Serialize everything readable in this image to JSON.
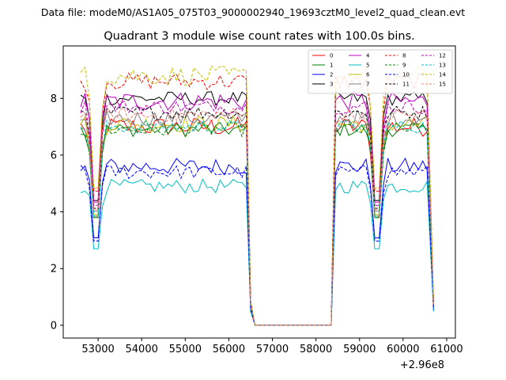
{
  "figure": {
    "suptitle": "Data file: modeM0/AS1A05_075T03_9000002940_19693cztM0_level2_quad_clean.evt"
  },
  "chart_data": {
    "type": "line",
    "title": "Quadrant 3 module wise count rates with 100.0s bins.",
    "xlabel": "",
    "ylabel": "",
    "x_offset_text": "+2.96e8",
    "xlim": [
      52200,
      61200
    ],
    "ylim": [
      -0.45,
      9.85
    ],
    "x_ticks": [
      53000,
      54000,
      55000,
      56000,
      57000,
      58000,
      59000,
      60000,
      61000
    ],
    "x_tick_labels": [
      "53000",
      "54000",
      "55000",
      "56000",
      "57000",
      "58000",
      "59000",
      "60000",
      "61000"
    ],
    "y_ticks": [
      0,
      2,
      4,
      6,
      8
    ],
    "y_tick_labels": [
      "0",
      "2",
      "4",
      "6",
      "8"
    ],
    "grid": false,
    "legend_position": "upper-right",
    "legend_columns": 4,
    "segments": [
      {
        "start": 52600,
        "end": 56400,
        "step": 100
      },
      {
        "start": 56500,
        "end": 56600,
        "step": 100
      },
      {
        "start": 58350,
        "end": 58350,
        "step": 100
      },
      {
        "start": 58450,
        "end": 60600,
        "step": 100
      },
      {
        "start": 60700,
        "end": 60700,
        "step": 100
      }
    ],
    "dip_times": [
      52950,
      59400
    ],
    "gap": {
      "start": 56600,
      "end": 58350,
      "value": 0
    },
    "series": [
      {
        "name": "0",
        "color": "#ff0000",
        "dash": "solid",
        "level": 7.0,
        "spread": 0.35
      },
      {
        "name": "1",
        "color": "#008000",
        "dash": "solid",
        "level": 6.9,
        "spread": 0.25
      },
      {
        "name": "2",
        "color": "#0000ff",
        "dash": "solid",
        "level": 5.6,
        "spread": 0.3
      },
      {
        "name": "3",
        "color": "#000000",
        "dash": "solid",
        "level": 8.0,
        "spread": 0.25
      },
      {
        "name": "4",
        "color": "#bf00bf",
        "dash": "solid",
        "level": 7.9,
        "spread": 0.35
      },
      {
        "name": "5",
        "color": "#00bfbf",
        "dash": "solid",
        "level": 4.9,
        "spread": 0.25
      },
      {
        "name": "6",
        "color": "#bfbf00",
        "dash": "solid",
        "level": 7.1,
        "spread": 0.3
      },
      {
        "name": "7",
        "color": "#808080",
        "dash": "solid",
        "level": 7.3,
        "spread": 0.3
      },
      {
        "name": "8",
        "color": "#ff0000",
        "dash": "dashed",
        "level": 8.6,
        "spread": 0.3
      },
      {
        "name": "9",
        "color": "#008000",
        "dash": "dashed",
        "level": 6.9,
        "spread": 0.25
      },
      {
        "name": "10",
        "color": "#0000ff",
        "dash": "dashed",
        "level": 5.4,
        "spread": 0.25
      },
      {
        "name": "11",
        "color": "#000000",
        "dash": "dashed",
        "level": 7.5,
        "spread": 0.25
      },
      {
        "name": "12",
        "color": "#bf00bf",
        "dash": "dashed",
        "level": 7.7,
        "spread": 0.25
      },
      {
        "name": "13",
        "color": "#00bfbf",
        "dash": "dashed",
        "level": 7.0,
        "spread": 0.25
      },
      {
        "name": "14",
        "color": "#bfbf00",
        "dash": "dashed",
        "level": 8.8,
        "spread": 0.35
      },
      {
        "name": "15",
        "color": "#fa8072",
        "dash": "dashed",
        "level": 7.4,
        "spread": 0.3
      }
    ]
  }
}
